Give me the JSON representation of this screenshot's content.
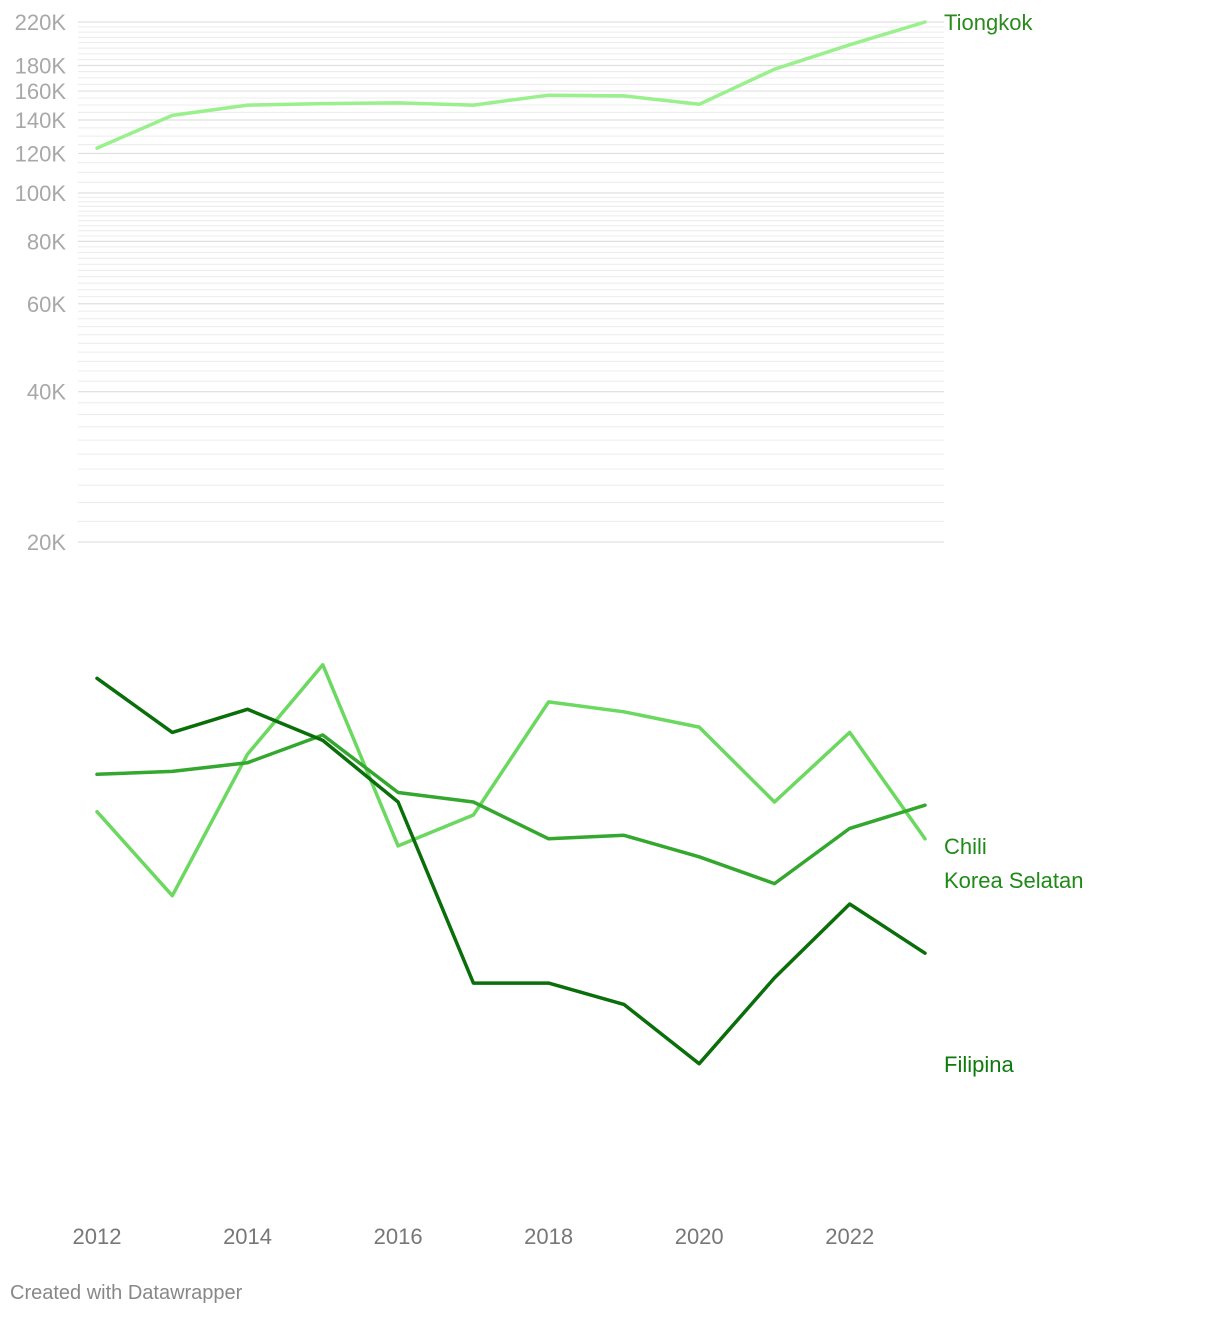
{
  "chart_data": {
    "type": "line",
    "x": [
      2012,
      2013,
      2014,
      2015,
      2016,
      2017,
      2018,
      2019,
      2020,
      2021,
      2022,
      2023
    ],
    "x_ticks": [
      2012,
      2014,
      2016,
      2018,
      2020,
      2022
    ],
    "y_scale": "log",
    "ylim": [
      20000,
      220000
    ],
    "y_ticks": [
      {
        "value": 220000,
        "label": "220K"
      },
      {
        "value": 180000,
        "label": "180K"
      },
      {
        "value": 160000,
        "label": "160K"
      },
      {
        "value": 140000,
        "label": "140K"
      },
      {
        "value": 120000,
        "label": "120K"
      },
      {
        "value": 100000,
        "label": "100K"
      },
      {
        "value": 80000,
        "label": "80K"
      },
      {
        "value": 60000,
        "label": "60K"
      },
      {
        "value": 40000,
        "label": "40K"
      },
      {
        "value": 20000,
        "label": "20K"
      }
    ],
    "grid": true,
    "series": [
      {
        "name": "Tiongkok",
        "color": "#99f08c",
        "label_color": "#2a8a1e",
        "values": [
          123000,
          143000,
          150000,
          151000,
          151500,
          150000,
          157000,
          156500,
          150500,
          177000,
          198000,
          220000
        ]
      },
      {
        "name": "Korea Selatan",
        "color": "#6bd860",
        "label_color": "#1f8a18",
        "values": [
          11400,
          9100,
          13300,
          16900,
          10400,
          11300,
          15300,
          14900,
          14300,
          11700,
          14100,
          10600
        ]
      },
      {
        "name": "Chili",
        "color": "#34a82e",
        "label_color": "#1f8a18",
        "values": [
          12600,
          12700,
          13000,
          14000,
          12000,
          11700,
          10600,
          10700,
          10100,
          9400,
          10900,
          11600
        ]
      },
      {
        "name": "Filipina",
        "color": "#0a6e0a",
        "label_color": "#0e7a0e",
        "values": [
          16300,
          14100,
          15000,
          13800,
          11700,
          7200,
          7200,
          6800,
          5800,
          7300,
          8900,
          7800
        ]
      }
    ]
  },
  "footer": {
    "credit": "Created with Datawrapper"
  }
}
